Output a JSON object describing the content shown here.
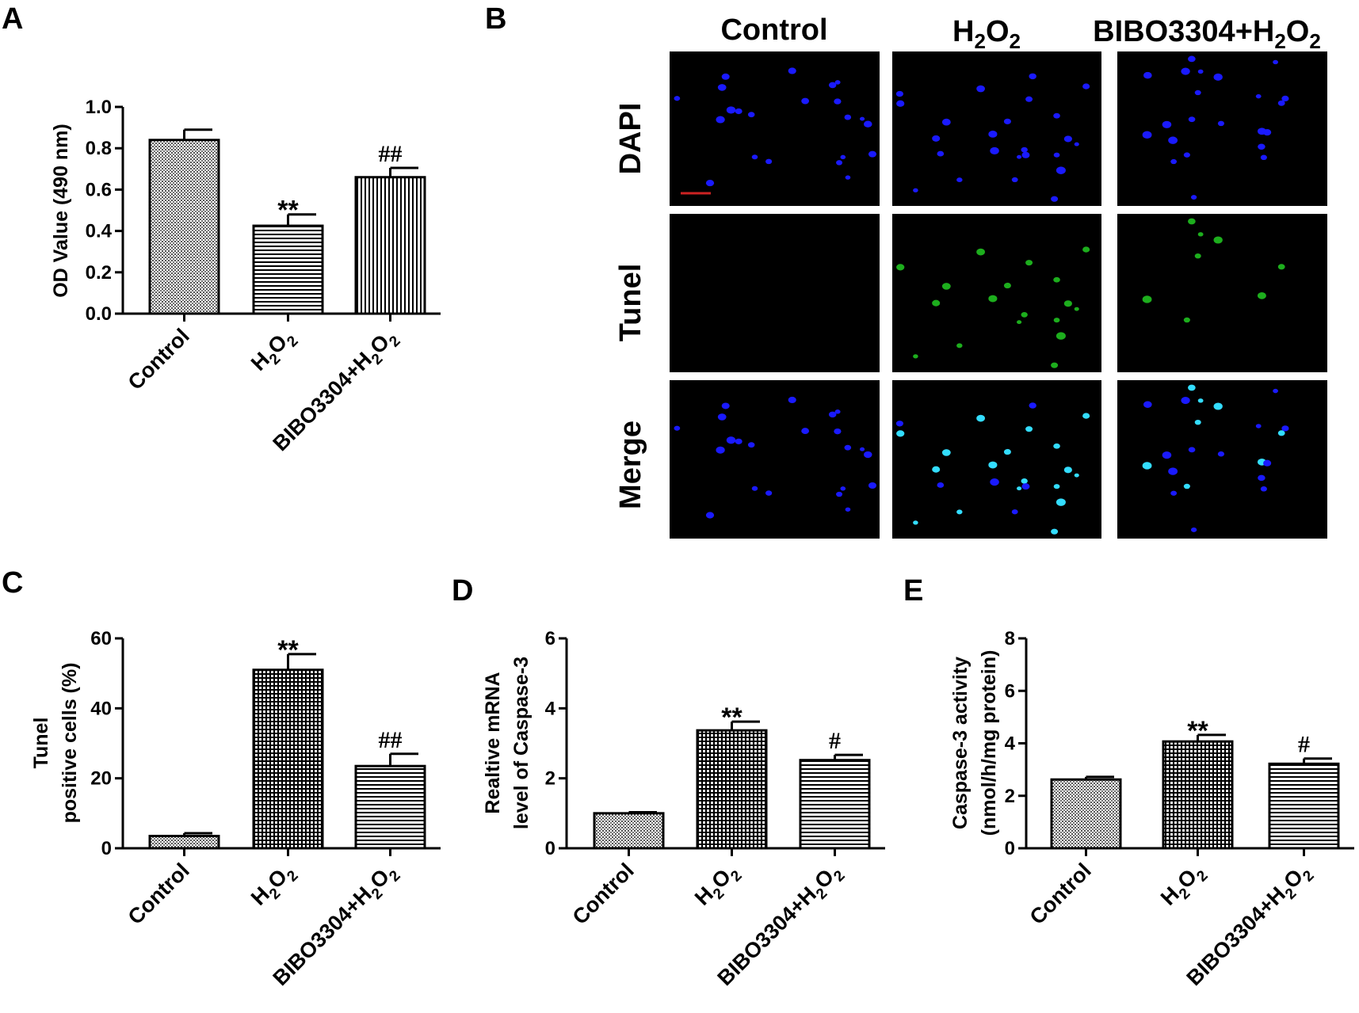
{
  "panel_labels": [
    "A",
    "B",
    "C",
    "D",
    "E"
  ],
  "colors": {
    "bar_stroke": "#000000",
    "dapi": "#1a1aff",
    "tunel": "#22cc22",
    "merge_overlap": "#33ddff",
    "scale_bar": "#cc2222",
    "micrograph_bg": "#000000"
  },
  "chart_data": [
    {
      "id": "A",
      "type": "bar",
      "categories": [
        "Control",
        "H2O2",
        "BIBO3304+H2O2"
      ],
      "values": [
        0.84,
        0.425,
        0.66
      ],
      "errors": [
        0.05,
        0.055,
        0.045
      ],
      "annotations": [
        "",
        "**",
        "##"
      ],
      "fills": [
        "dots",
        "hlines",
        "vlines"
      ],
      "ylabel": "OD Value (490 nm)",
      "ylim": [
        0,
        1.0
      ],
      "yticks": [
        "0.0",
        "0.2",
        "0.4",
        "0.6",
        "0.8",
        "1.0"
      ],
      "ytick_values": [
        0,
        0.2,
        0.4,
        0.6,
        0.8,
        1.0
      ]
    },
    {
      "id": "C",
      "type": "bar",
      "categories": [
        "Control",
        "H2O2",
        "BIBO3304+H2O2"
      ],
      "values": [
        3.5,
        51,
        23.5
      ],
      "errors": [
        0.8,
        4.5,
        3.5
      ],
      "annotations": [
        "",
        "**",
        "##"
      ],
      "fills": [
        "dots",
        "grid",
        "hlines"
      ],
      "ylabel_lines": [
        "Tunel",
        "positive cells (%)"
      ],
      "ylim": [
        0,
        60
      ],
      "yticks": [
        "0",
        "20",
        "40",
        "60"
      ],
      "ytick_values": [
        0,
        20,
        40,
        60
      ]
    },
    {
      "id": "D",
      "type": "bar",
      "categories": [
        "Control",
        "H2O2",
        "BIBO3304+H2O2"
      ],
      "values": [
        1.0,
        3.37,
        2.52
      ],
      "errors": [
        0.03,
        0.25,
        0.15
      ],
      "annotations": [
        "",
        "**",
        "#"
      ],
      "fills": [
        "dots",
        "grid",
        "hlines"
      ],
      "ylabel_lines": [
        "Realtive mRNA",
        "level of Caspase-3"
      ],
      "ylim": [
        0,
        6
      ],
      "yticks": [
        "0",
        "2",
        "4",
        "6"
      ],
      "ytick_values": [
        0,
        2,
        4,
        6
      ]
    },
    {
      "id": "E",
      "type": "bar",
      "categories": [
        "Control",
        "H2O2",
        "BIBO3304+H2O2"
      ],
      "values": [
        2.62,
        4.07,
        3.22
      ],
      "errors": [
        0.1,
        0.25,
        0.2
      ],
      "annotations": [
        "",
        "**",
        "#"
      ],
      "fills": [
        "dots",
        "grid",
        "hlines"
      ],
      "ylabel_lines": [
        "Caspase-3 activity",
        "(nmol/h/mg protein)"
      ],
      "ylim": [
        0,
        8
      ],
      "yticks": [
        "0",
        "2",
        "4",
        "6",
        "8"
      ],
      "ytick_values": [
        0,
        2,
        4,
        6,
        8
      ]
    }
  ],
  "micrograph": {
    "columns": [
      "Control",
      "H2O2",
      "BIBO3304+H2O2"
    ],
    "rows": [
      "DAPI",
      "Tunel",
      "Merge"
    ]
  }
}
